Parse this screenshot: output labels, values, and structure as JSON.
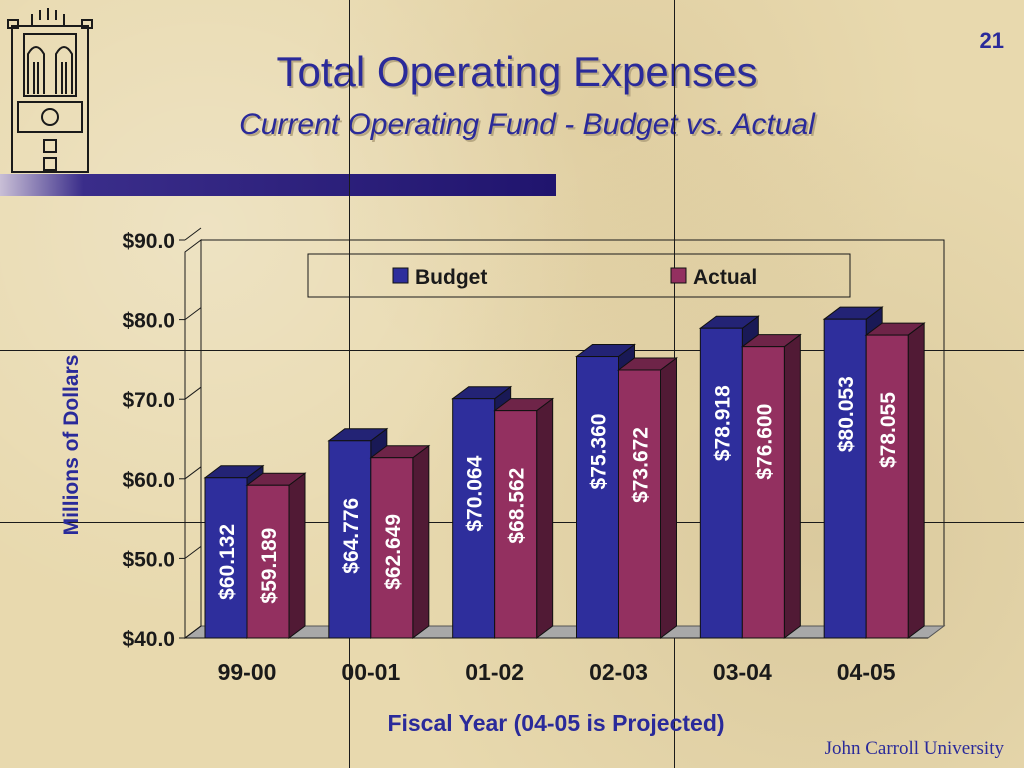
{
  "slide": {
    "number": "21"
  },
  "header": {
    "title": "Total Operating Expenses",
    "subtitle": "Current Operating Fund - Budget vs. Actual"
  },
  "footer": {
    "brand": "John Carroll University"
  },
  "colors": {
    "budget": "#2e2e9c",
    "actual": "#933060",
    "title": "#2a2a9a"
  },
  "chart_data": {
    "type": "bar",
    "categories": [
      "99-00",
      "00-01",
      "01-02",
      "02-03",
      "03-04",
      "04-05"
    ],
    "series": [
      {
        "name": "Budget",
        "values": [
          60.132,
          64.776,
          70.064,
          75.36,
          78.918,
          80.053
        ],
        "labels": [
          "$60.132",
          "$64.776",
          "$70.064",
          "$75.360",
          "$78.918",
          "$80.053"
        ]
      },
      {
        "name": "Actual",
        "values": [
          59.189,
          62.649,
          68.562,
          73.672,
          76.6,
          78.055
        ],
        "labels": [
          "$59.189",
          "$62.649",
          "$68.562",
          "$73.672",
          "$76.600",
          "$78.055"
        ]
      }
    ],
    "ylim": [
      40,
      90
    ],
    "yticks": [
      40,
      50,
      60,
      70,
      80,
      90
    ],
    "ytick_labels": [
      "$40.0",
      "$50.0",
      "$60.0",
      "$70.0",
      "$80.0",
      "$90.0"
    ],
    "xlabel": "Fiscal Year (04-05 is Projected)",
    "ylabel": "Millions of Dollars",
    "legend": "top",
    "grid": false
  }
}
